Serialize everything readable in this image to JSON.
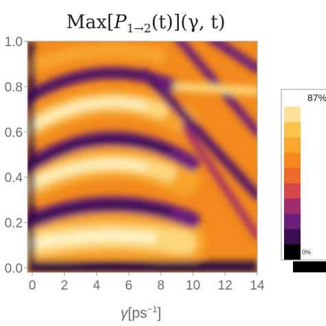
{
  "chart_data": {
    "type": "heatmap",
    "title": {
      "prefix": "Max[",
      "p_symbol": "P",
      "p_subscript": "1→2",
      "p_suffix": "(t)](γ, t)"
    },
    "xlabel": {
      "symbol": "γ",
      "unit": "[ps",
      "unit_exponent": "−1",
      "unit_close": "]"
    },
    "ylabel": "",
    "xlim": [
      -0.3,
      14
    ],
    "ylim": [
      -0.02,
      1.0
    ],
    "xticks": [
      "0",
      "2",
      "4",
      "6",
      "8",
      "10",
      "12",
      "14"
    ],
    "yticks": [
      "0.0",
      "0.2",
      "0.4",
      "0.6",
      "0.8",
      "1.0"
    ],
    "colorscale": "inferno-like (black → purple → red → orange → pale yellow)",
    "colors": {
      "black": "#000000",
      "deep_purple": "#2a0f45",
      "purple": "#6a1f7a",
      "magenta": "#a02c6c",
      "red": "#d9474a",
      "orange": "#f28a1c",
      "bright_orange": "#f8a52a",
      "yellow": "#fcd77a",
      "pale": "#fdf3c8"
    },
    "features": {
      "bright_bands_at_gamma_5": [
        0.14,
        0.46,
        0.73
      ],
      "dark_bands_at_gamma_5": [
        0.06,
        0.28,
        0.57,
        0.86
      ],
      "notes": "bands arc upward toward gamma≈5 and split into diagonal stripes for gamma>8"
    },
    "legend": {
      "position": "right",
      "max_label": "87%",
      "min_label": "0%",
      "swatches": [
        "#000000",
        "#3a1050",
        "#6a1f7a",
        "#a02c6c",
        "#d9474a",
        "#ef6a2a",
        "#f68a1c",
        "#f9a62a",
        "#fbc34a",
        "#fde19a"
      ]
    }
  }
}
